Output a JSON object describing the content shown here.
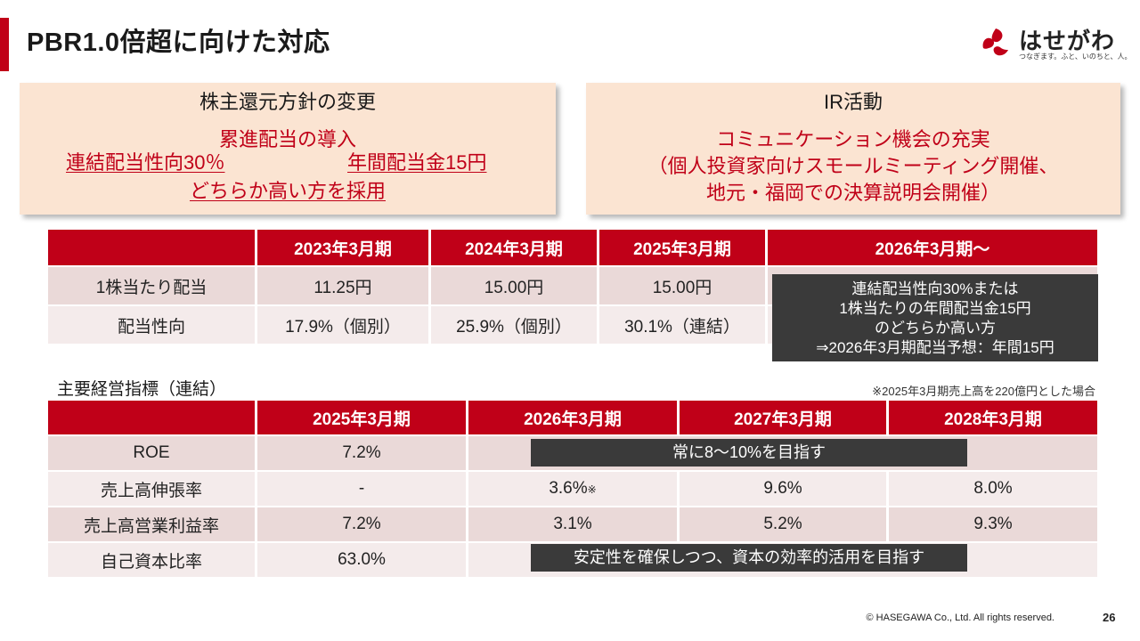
{
  "title": "PBR1.0倍超に向けた対応",
  "logo": {
    "name": "はせがわ",
    "tagline": "つなぎます。ふと、いのちと、人。"
  },
  "box_left": {
    "heading": "株主還元方針の変更",
    "line1": "累進配当の導入",
    "line2a": "連結配当性向30％",
    "line2b": "年間配当金15円",
    "line3": "どちらか高い方を採用"
  },
  "box_right": {
    "heading": "IR活動",
    "line1": "コミュニケーション機会の充実",
    "line2": "（個人投資家向けスモールミーティング開催、",
    "line3": "地元・福岡での決算説明会開催）"
  },
  "dividend_table": {
    "headers": [
      "",
      "2023年3月期",
      "2024年3月期",
      "2025年3月期",
      "2026年3月期～"
    ],
    "rows": [
      {
        "label": "1株当たり配当",
        "values": [
          "11.25円",
          "15.00円",
          "15.00円"
        ]
      },
      {
        "label": "配当性向",
        "values": [
          "17.9%（個別）",
          "25.9%（個別）",
          "30.1%（連結）"
        ]
      }
    ],
    "note_lines": [
      "連結配当性向30%または",
      "1株当たりの年間配当金15円",
      "のどちらか高い方",
      "⇒2026年3月期配当予想：年間15円"
    ]
  },
  "kpi_title": "主要経営指標（連結）",
  "kpi_note": "※2025年3月期売上高を220億円とした場合",
  "kpi_table": {
    "headers": [
      "",
      "2025年3月期",
      "2026年3月期",
      "2027年3月期",
      "2028年3月期"
    ],
    "rows": [
      {
        "label": "ROE",
        "values": [
          "7.2%",
          "",
          "",
          ""
        ]
      },
      {
        "label": "売上高伸張率",
        "values": [
          "-",
          "3.6%",
          "9.6%",
          "8.0%"
        ],
        "mark": "※"
      },
      {
        "label": "売上高営業利益率",
        "values": [
          "7.2%",
          "3.1%",
          "5.2%",
          "9.3%"
        ]
      },
      {
        "label": "自己資本比率",
        "values": [
          "63.0%",
          "",
          "",
          ""
        ]
      }
    ],
    "roe_target": "常に8～10%を目指す",
    "equity_target": "安定性を確保しつつ、資本の効率的活用を目指す"
  },
  "footer": "© HASEGAWA Co., Ltd. All rights reserved.",
  "page_number": "26",
  "colors": {
    "accent": "#c00018",
    "box_bg": "#fbe4d2",
    "dark": "#3a3a3a"
  }
}
